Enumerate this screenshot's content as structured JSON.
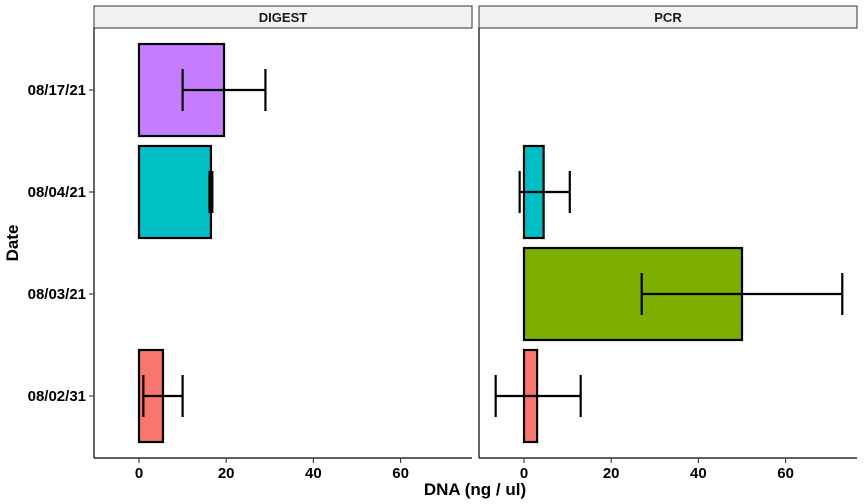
{
  "chart_data": {
    "type": "bar",
    "orientation": "horizontal",
    "xlabel": "DNA (ng / ul)",
    "ylabel": "Date",
    "xlim": [
      -10,
      76
    ],
    "x_ticks": [
      "0",
      "20",
      "40",
      "60"
    ],
    "categories": [
      "08/02/31",
      "08/03/21",
      "08/04/21",
      "08/17/21"
    ],
    "grid": false,
    "legend": "none",
    "panels": [
      {
        "name": "DIGEST",
        "bars": [
          {
            "category": "08/02/31",
            "value": 5.5,
            "err_low": 1,
            "err_high": 10,
            "color": "#F8766D"
          },
          {
            "category": "08/04/21",
            "value": 16.5,
            "err_low": 16.5,
            "err_high": 16.5,
            "color": "#00BFC4"
          },
          {
            "category": "08/17/21",
            "value": 19.5,
            "err_low": 10,
            "err_high": 29,
            "color": "#C77CFF"
          }
        ]
      },
      {
        "name": "PCR",
        "bars": [
          {
            "category": "08/02/31",
            "value": 3,
            "err_low": -6.5,
            "err_high": 13,
            "color": "#F8766D"
          },
          {
            "category": "08/03/21",
            "value": 50,
            "err_low": 27,
            "err_high": 73,
            "color": "#7CAE00"
          },
          {
            "category": "08/04/21",
            "value": 4.5,
            "err_low": -1,
            "err_high": 10.5,
            "color": "#00BFC4"
          }
        ]
      }
    ]
  }
}
